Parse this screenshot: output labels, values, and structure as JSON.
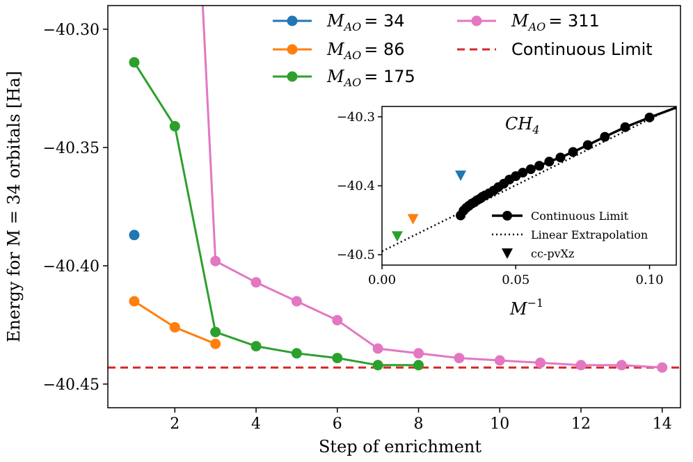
{
  "chart_data": [
    {
      "type": "line",
      "xlabel": "Step of enrichment",
      "ylabel": "Energy for M = 34 orbitals [Ha]",
      "xlim": [
        0.35,
        14.45
      ],
      "ylim": [
        -40.46,
        -40.29
      ],
      "xticks": [
        2,
        4,
        6,
        8,
        10,
        12,
        14
      ],
      "yticks": [
        -40.3,
        -40.35,
        -40.4,
        -40.45
      ],
      "ytick_labels": [
        "−40.30",
        "−40.35",
        "−40.40",
        "−40.45"
      ],
      "legend_position": "top-right",
      "series": [
        {
          "name": "M_AO = 34",
          "legend_label": "= 34",
          "color": "#1f77b4",
          "points": [
            [
              1,
              -40.387
            ]
          ]
        },
        {
          "name": "M_AO = 86",
          "legend_label": "= 86",
          "color": "#ff7f0e",
          "points": [
            [
              1,
              -40.415
            ],
            [
              2,
              -40.426
            ],
            [
              3,
              -40.433
            ]
          ]
        },
        {
          "name": "M_AO = 175",
          "legend_label": "= 175",
          "color": "#2ca02c",
          "points": [
            [
              1,
              -40.314
            ],
            [
              2,
              -40.341
            ],
            [
              3,
              -40.428
            ],
            [
              4,
              -40.434
            ],
            [
              5,
              -40.437
            ],
            [
              6,
              -40.439
            ],
            [
              7,
              -40.442
            ],
            [
              8,
              -40.442
            ]
          ]
        },
        {
          "name": "M_AO = 311",
          "legend_label": "= 311",
          "color": "#e377c2",
          "points": [
            [
              2.6,
              -40.26
            ],
            [
              3,
              -40.398
            ],
            [
              4,
              -40.407
            ],
            [
              5,
              -40.415
            ],
            [
              6,
              -40.423
            ],
            [
              7,
              -40.435
            ],
            [
              8,
              -40.437
            ],
            [
              9,
              -40.439
            ],
            [
              10,
              -40.44
            ],
            [
              11,
              -40.441
            ],
            [
              12,
              -40.442
            ],
            [
              13,
              -40.442
            ],
            [
              14,
              -40.443
            ]
          ]
        }
      ],
      "continuous_limit": {
        "name": "Continuous Limit",
        "value": -40.443,
        "color": "#d62728"
      }
    },
    {
      "type": "scatter",
      "title": "CH",
      "title_sub": "4",
      "xlabel": "M",
      "xlabel_sup": "−1",
      "xlim": [
        0.0,
        0.11
      ],
      "ylim": [
        -40.515,
        -40.285
      ],
      "xticks": [
        0.0,
        0.05,
        0.1
      ],
      "xtick_labels": [
        "0.00",
        "0.05",
        "0.10"
      ],
      "yticks": [
        -40.3,
        -40.4,
        -40.5
      ],
      "ytick_labels": [
        "−40.3",
        "−40.4",
        "−40.5"
      ],
      "legend_position": "bottom-right",
      "continuous_limit": {
        "name": "Continuous Limit",
        "points": [
          [
            0.0294,
            -40.443
          ],
          [
            0.0305,
            -40.436
          ],
          [
            0.0315,
            -40.432
          ],
          [
            0.0325,
            -40.429
          ],
          [
            0.0335,
            -40.426
          ],
          [
            0.0345,
            -40.424
          ],
          [
            0.0355,
            -40.421
          ],
          [
            0.0365,
            -40.419
          ],
          [
            0.0375,
            -40.416
          ],
          [
            0.0385,
            -40.414
          ],
          [
            0.04,
            -40.411
          ],
          [
            0.0417,
            -40.407
          ],
          [
            0.0435,
            -40.402
          ],
          [
            0.0455,
            -40.397
          ],
          [
            0.0476,
            -40.391
          ],
          [
            0.05,
            -40.386
          ],
          [
            0.0526,
            -40.381
          ],
          [
            0.0556,
            -40.376
          ],
          [
            0.0588,
            -40.371
          ],
          [
            0.0625,
            -40.365
          ],
          [
            0.0667,
            -40.359
          ],
          [
            0.0714,
            -40.351
          ],
          [
            0.0769,
            -40.341
          ],
          [
            0.0833,
            -40.329
          ],
          [
            0.0909,
            -40.315
          ],
          [
            0.1,
            -40.301
          ],
          [
            0.1111,
            -40.285
          ]
        ]
      },
      "linear_extrapolation": {
        "name": "Linear Extrapolation",
        "points": [
          [
            0.0,
            -40.495
          ],
          [
            0.107,
            -40.29
          ]
        ]
      },
      "ccpvxz": {
        "name": "cc-pvXz",
        "points": [
          {
            "x": 0.0294,
            "y": -40.385,
            "color": "#1f77b4"
          },
          {
            "x": 0.0116,
            "y": -40.448,
            "color": "#ff7f0e"
          },
          {
            "x": 0.0057,
            "y": -40.473,
            "color": "#2ca02c"
          }
        ]
      }
    }
  ]
}
